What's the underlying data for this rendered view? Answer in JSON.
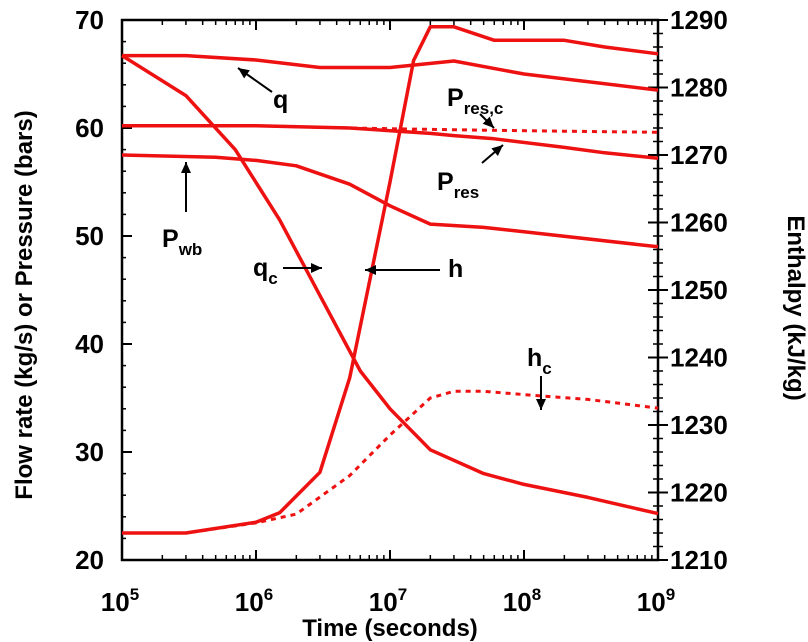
{
  "chart_data": {
    "type": "line",
    "xlabel": "Time  (seconds)",
    "ylabel_left": "Flow rate (kg/s) or Pressure (bars)",
    "ylabel_right": "Enthalpy  (kJ/kg)",
    "x_scale": "log",
    "xlim": [
      100000,
      1000000000
    ],
    "ylim_left": [
      20,
      70
    ],
    "ylim_right": [
      1210,
      1290
    ],
    "x_ticks": [
      {
        "value": 100000,
        "base": "10",
        "exp": "5"
      },
      {
        "value": 1000000,
        "base": "10",
        "exp": "6"
      },
      {
        "value": 10000000,
        "base": "10",
        "exp": "7"
      },
      {
        "value": 100000000,
        "base": "10",
        "exp": "8"
      },
      {
        "value": 1000000000,
        "base": "10",
        "exp": "9"
      }
    ],
    "y_left_ticks": [
      "20",
      "30",
      "40",
      "50",
      "60",
      "70"
    ],
    "y_right_ticks": [
      "1210",
      "1220",
      "1230",
      "1240",
      "1250",
      "1260",
      "1270",
      "1280",
      "1290"
    ],
    "grid": false,
    "color": "#ee1111",
    "series": [
      {
        "axis": "left",
        "style": "solid",
        "x": [
          100000,
          300000,
          1000000,
          3000000,
          10000000,
          30000000,
          100000000,
          1000000000
        ],
        "y": [
          66.7,
          66.7,
          66.3,
          65.6,
          65.6,
          66.2,
          65.0,
          63.5
        ]
      },
      {
        "axis": "left",
        "style": "solid",
        "x": [
          100000,
          1000000,
          5000000,
          20000000,
          30000000,
          60000000,
          200000000,
          400000000,
          1000000000
        ],
        "y": [
          60.2,
          60.2,
          60.0,
          59.5,
          59.3,
          59.0,
          58.2,
          57.7,
          57.2
        ]
      },
      {
        "axis": "left",
        "style": "dotted",
        "x": [
          100000,
          1000000,
          5000000,
          15000000,
          50000000,
          200000000,
          1000000000
        ],
        "y": [
          60.2,
          60.2,
          60.0,
          59.9,
          59.8,
          59.7,
          59.6
        ]
      },
      {
        "axis": "left",
        "style": "solid",
        "x": [
          100000,
          500000,
          1000000,
          2000000,
          5000000,
          10000000,
          20000000,
          50000000,
          100000000,
          1000000000
        ],
        "y": [
          57.5,
          57.3,
          57.0,
          56.5,
          54.8,
          52.8,
          51.1,
          50.8,
          50.4,
          49.0
        ]
      },
      {
        "axis": "left",
        "style": "solid",
        "x": [
          100000,
          300000,
          700000,
          1500000,
          3000000,
          6000000,
          10000000,
          20000000,
          50000000,
          100000000,
          300000000,
          1000000000
        ],
        "y": [
          66.7,
          63.0,
          58.0,
          51.5,
          44.5,
          37.5,
          34.0,
          30.2,
          28.0,
          27.0,
          25.8,
          24.3
        ]
      },
      {
        "axis": "right",
        "style": "solid",
        "x": [
          100000,
          300000,
          1000000,
          1500000,
          3000000,
          5000000,
          10000000,
          15000000,
          20000000,
          30000000,
          60000000,
          200000000,
          400000000,
          1000000000
        ],
        "y": [
          1214,
          1214,
          1215.6,
          1217,
          1223,
          1237,
          1266,
          1284,
          1289,
          1289,
          1287,
          1287,
          1286,
          1285
        ]
      },
      {
        "axis": "right",
        "style": "dotted",
        "x": [
          100000,
          300000,
          1000000,
          2000000,
          5000000,
          10000000,
          20000000,
          30000000,
          50000000,
          100000000,
          300000000,
          1000000000
        ],
        "y": [
          1214,
          1214,
          1215.5,
          1216.8,
          1222.5,
          1228.5,
          1234,
          1235,
          1235,
          1234.5,
          1233.8,
          1232.5
        ]
      }
    ],
    "annotations": [
      {
        "label": "q",
        "sub": ""
      },
      {
        "label": "P",
        "sub": "res,c"
      },
      {
        "label": "P",
        "sub": "res"
      },
      {
        "label": "P",
        "sub": "wb"
      },
      {
        "label": "q",
        "sub": "c"
      },
      {
        "label": "h",
        "sub": ""
      },
      {
        "label": "h",
        "sub": "c"
      }
    ]
  }
}
